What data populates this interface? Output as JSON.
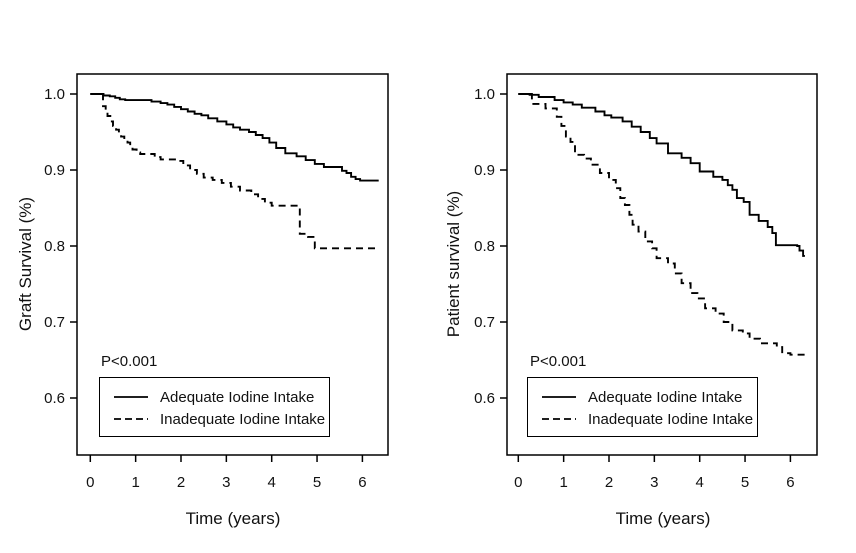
{
  "figure": {
    "background": "#ffffff",
    "line_color": "#000000",
    "p_value_text": "P<0.001"
  },
  "chart_data": [
    {
      "type": "line",
      "subtype": "kaplan_meier_step",
      "panel": "left",
      "title": "",
      "ylabel": "Graft Survival (%)",
      "xlabel": "Time (years)",
      "annotation": "P<0.001",
      "grid": false,
      "legend_position": "bottom-left-inside",
      "xlim": [
        -0.29,
        6.57
      ],
      "ylim": [
        0.525,
        1.026
      ],
      "xticks": [
        0,
        1,
        2,
        3,
        4,
        5,
        6
      ],
      "yticks": [
        {
          "value": 1.0,
          "label": "1.0"
        },
        {
          "value": 0.9,
          "label": "0.9"
        },
        {
          "value": 0.8,
          "label": "0.8"
        },
        {
          "value": 0.7,
          "label": "0.7"
        },
        {
          "value": 0.6,
          "label": "0.6"
        }
      ],
      "legend": [
        {
          "label": "Adequate Iodine Intake",
          "style": "solid"
        },
        {
          "label": "Inadequate Iodine Intake",
          "style": "dashed"
        }
      ],
      "series": [
        {
          "name": "Adequate Iodine Intake",
          "style": "solid",
          "color": "#000000",
          "points": [
            [
              0,
              1.0
            ],
            [
              0.29,
              0.998
            ],
            [
              0.43,
              0.997
            ],
            [
              0.55,
              0.995
            ],
            [
              0.65,
              0.993
            ],
            [
              0.77,
              0.992
            ],
            [
              1.35,
              0.99
            ],
            [
              1.55,
              0.988
            ],
            [
              1.7,
              0.986
            ],
            [
              1.85,
              0.983
            ],
            [
              2.0,
              0.98
            ],
            [
              2.15,
              0.977
            ],
            [
              2.3,
              0.974
            ],
            [
              2.45,
              0.972
            ],
            [
              2.6,
              0.968
            ],
            [
              2.8,
              0.964
            ],
            [
              3.0,
              0.96
            ],
            [
              3.15,
              0.956
            ],
            [
              3.3,
              0.953
            ],
            [
              3.5,
              0.95
            ],
            [
              3.65,
              0.946
            ],
            [
              3.8,
              0.942
            ],
            [
              3.95,
              0.936
            ],
            [
              4.1,
              0.929
            ],
            [
              4.3,
              0.922
            ],
            [
              4.55,
              0.918
            ],
            [
              4.75,
              0.913
            ],
            [
              4.95,
              0.908
            ],
            [
              5.15,
              0.904
            ],
            [
              5.55,
              0.899
            ],
            [
              5.65,
              0.896
            ],
            [
              5.75,
              0.891
            ],
            [
              5.85,
              0.888
            ],
            [
              5.95,
              0.886
            ],
            [
              6.36,
              0.886
            ]
          ]
        },
        {
          "name": "Inadequate Iodine Intake",
          "style": "dashed",
          "color": "#000000",
          "points": [
            [
              0,
              1.0
            ],
            [
              0.28,
              0.984
            ],
            [
              0.34,
              0.978
            ],
            [
              0.38,
              0.971
            ],
            [
              0.44,
              0.964
            ],
            [
              0.5,
              0.958
            ],
            [
              0.57,
              0.953
            ],
            [
              0.63,
              0.948
            ],
            [
              0.68,
              0.944
            ],
            [
              0.75,
              0.94
            ],
            [
              0.82,
              0.936
            ],
            [
              0.88,
              0.931
            ],
            [
              0.93,
              0.927
            ],
            [
              1.02,
              0.923
            ],
            [
              1.1,
              0.921
            ],
            [
              1.42,
              0.917
            ],
            [
              1.55,
              0.914
            ],
            [
              1.9,
              0.912
            ],
            [
              2.05,
              0.906
            ],
            [
              2.2,
              0.9
            ],
            [
              2.35,
              0.895
            ],
            [
              2.5,
              0.89
            ],
            [
              2.7,
              0.887
            ],
            [
              2.9,
              0.883
            ],
            [
              3.1,
              0.878
            ],
            [
              3.3,
              0.873
            ],
            [
              3.55,
              0.868
            ],
            [
              3.7,
              0.862
            ],
            [
              3.85,
              0.857
            ],
            [
              4.0,
              0.853
            ],
            [
              4.62,
              0.816
            ],
            [
              4.8,
              0.812
            ],
            [
              4.95,
              0.797
            ],
            [
              6.33,
              0.796
            ]
          ]
        }
      ]
    },
    {
      "type": "line",
      "subtype": "kaplan_meier_step",
      "panel": "right",
      "title": "",
      "ylabel": "Patient survival (%)",
      "xlabel": "Time (years)",
      "annotation": "P<0.001",
      "grid": false,
      "legend_position": "bottom-left-inside",
      "xlim": [
        -0.29,
        6.57
      ],
      "ylim": [
        0.525,
        1.026
      ],
      "xticks": [
        0,
        1,
        2,
        3,
        4,
        5,
        6
      ],
      "yticks": [
        {
          "value": 1.0,
          "label": "1.0"
        },
        {
          "value": 0.9,
          "label": "0.9"
        },
        {
          "value": 0.8,
          "label": "0.8"
        },
        {
          "value": 0.7,
          "label": "0.7"
        },
        {
          "value": 0.6,
          "label": "0.6"
        }
      ],
      "legend": [
        {
          "label": "Adequate Iodine Intake",
          "style": "solid"
        },
        {
          "label": "Inadequate Iodine Intake",
          "style": "dashed"
        }
      ],
      "series": [
        {
          "name": "Adequate Iodine Intake",
          "style": "solid",
          "color": "#000000",
          "points": [
            [
              0,
              1.0
            ],
            [
              0.25,
              0.999
            ],
            [
              0.45,
              0.996
            ],
            [
              0.8,
              0.992
            ],
            [
              1.0,
              0.989
            ],
            [
              1.2,
              0.986
            ],
            [
              1.4,
              0.982
            ],
            [
              1.7,
              0.977
            ],
            [
              1.9,
              0.972
            ],
            [
              2.05,
              0.969
            ],
            [
              2.3,
              0.964
            ],
            [
              2.5,
              0.957
            ],
            [
              2.7,
              0.95
            ],
            [
              2.9,
              0.942
            ],
            [
              3.05,
              0.935
            ],
            [
              3.3,
              0.922
            ],
            [
              3.6,
              0.916
            ],
            [
              3.8,
              0.909
            ],
            [
              4.0,
              0.898
            ],
            [
              4.3,
              0.891
            ],
            [
              4.5,
              0.887
            ],
            [
              4.62,
              0.88
            ],
            [
              4.72,
              0.874
            ],
            [
              4.82,
              0.863
            ],
            [
              4.97,
              0.858
            ],
            [
              5.1,
              0.841
            ],
            [
              5.3,
              0.833
            ],
            [
              5.5,
              0.825
            ],
            [
              5.6,
              0.817
            ],
            [
              5.68,
              0.801
            ],
            [
              6.15,
              0.8
            ],
            [
              6.2,
              0.794
            ],
            [
              6.28,
              0.787
            ],
            [
              6.32,
              0.787
            ]
          ]
        },
        {
          "name": "Inadequate Iodine Intake",
          "style": "dashed",
          "color": "#000000",
          "points": [
            [
              0,
              1.0
            ],
            [
              0.3,
              0.987
            ],
            [
              0.6,
              0.981
            ],
            [
              0.85,
              0.97
            ],
            [
              0.95,
              0.958
            ],
            [
              1.05,
              0.944
            ],
            [
              1.15,
              0.937
            ],
            [
              1.25,
              0.92
            ],
            [
              1.45,
              0.915
            ],
            [
              1.6,
              0.907
            ],
            [
              1.8,
              0.896
            ],
            [
              2.0,
              0.887
            ],
            [
              2.15,
              0.876
            ],
            [
              2.25,
              0.863
            ],
            [
              2.35,
              0.854
            ],
            [
              2.45,
              0.841
            ],
            [
              2.52,
              0.828
            ],
            [
              2.65,
              0.819
            ],
            [
              2.8,
              0.806
            ],
            [
              2.95,
              0.797
            ],
            [
              3.05,
              0.784
            ],
            [
              3.3,
              0.777
            ],
            [
              3.45,
              0.764
            ],
            [
              3.6,
              0.751
            ],
            [
              3.8,
              0.738
            ],
            [
              3.95,
              0.731
            ],
            [
              4.12,
              0.718
            ],
            [
              4.35,
              0.711
            ],
            [
              4.53,
              0.7
            ],
            [
              4.72,
              0.689
            ],
            [
              4.95,
              0.685
            ],
            [
              5.1,
              0.678
            ],
            [
              5.33,
              0.672
            ],
            [
              5.7,
              0.667
            ],
            [
              5.82,
              0.659
            ],
            [
              6.0,
              0.657
            ],
            [
              6.33,
              0.657
            ]
          ]
        }
      ]
    }
  ]
}
